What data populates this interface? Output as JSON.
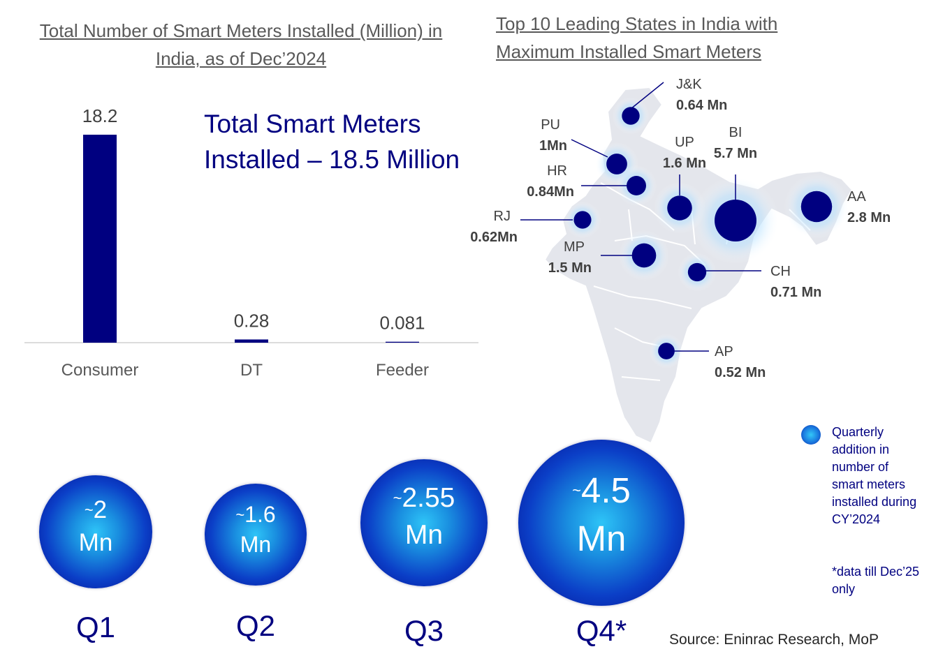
{
  "bar_chart_title": "Total Number of Smart Meters Installed (Million) in India, as of Dec’2024",
  "headline": "Total Smart Meters Installed – 18.5 Million",
  "map_title": "Top 10 Leading States in India with Maximum Installed Smart Meters",
  "chart_data": [
    {
      "type": "bar",
      "title": "Total Number of Smart Meters Installed (Million) in India, as of Dec’2024",
      "categories": [
        "Consumer",
        "DT",
        "Feeder"
      ],
      "values": [
        18.2,
        0.28,
        0.081
      ],
      "value_labels": [
        "18.2",
        "0.28",
        "0.081"
      ],
      "ylim": [
        0,
        18.2
      ],
      "color": "#000080",
      "grid": false
    },
    {
      "type": "bubble-map",
      "title": "Top 10 Leading States in India with Maximum Installed Smart Meters",
      "states": [
        {
          "code": "J&K",
          "label": "0.64 Mn",
          "value": 0.64
        },
        {
          "code": "PU",
          "label": "1Mn",
          "value": 1.0
        },
        {
          "code": "HR",
          "label": "0.84Mn",
          "value": 0.84
        },
        {
          "code": "UP",
          "label": "1.6 Mn",
          "value": 1.6
        },
        {
          "code": "BI",
          "label": "5.7 Mn",
          "value": 5.7
        },
        {
          "code": "AA",
          "label": "2.8 Mn",
          "value": 2.8
        },
        {
          "code": "RJ",
          "label": "0.62Mn",
          "value": 0.62
        },
        {
          "code": "MP",
          "label": "1.5 Mn",
          "value": 1.5
        },
        {
          "code": "CH",
          "label": "0.71 Mn",
          "value": 0.71
        },
        {
          "code": "AP",
          "label": "0.52 Mn",
          "value": 0.52
        }
      ]
    },
    {
      "type": "bubble",
      "categories": [
        "Q1",
        "Q2",
        "Q3",
        "Q4*"
      ],
      "values": [
        2,
        1.6,
        2.55,
        4.5
      ],
      "value_labels": [
        "2",
        "1.6",
        "2.55",
        "4.5"
      ],
      "prefix": "~",
      "unit": "Mn"
    }
  ],
  "legend": {
    "text": "Quarterly addition in number of smart meters installed during CY’2024",
    "note": "*data till Dec’25  only"
  },
  "source": "Source: Eninrac Research, MoP",
  "colors": {
    "primary": "#000080",
    "bubble_center": "#2ec4f7",
    "bubble_edge": "#050a8c",
    "map_fill": "#e4e6ec"
  }
}
